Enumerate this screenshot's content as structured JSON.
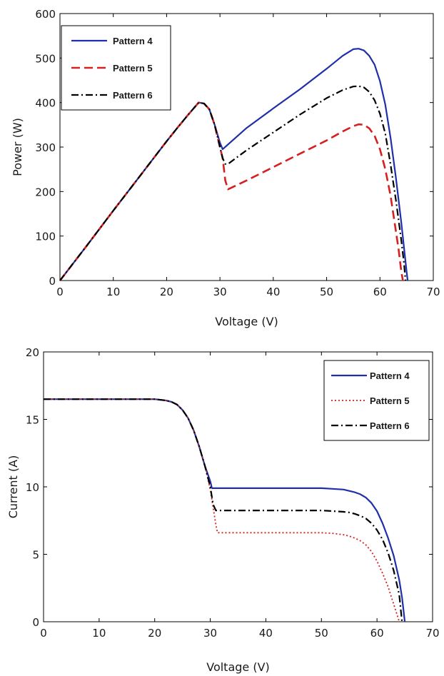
{
  "chart_data": [
    {
      "type": "line",
      "title": "",
      "xlabel": "Voltage (V)",
      "ylabel": "Power (W)",
      "xlim": [
        0,
        70
      ],
      "ylim": [
        0,
        600
      ],
      "xticks": [
        "0",
        "10",
        "20",
        "30",
        "40",
        "50",
        "60",
        "70"
      ],
      "yticks": [
        "0",
        "100",
        "200",
        "300",
        "400",
        "500",
        "600"
      ],
      "grid": false,
      "legend": "top-left",
      "series": [
        {
          "name": "Pattern 4",
          "color": "#1f2fa8",
          "dash": "solid",
          "x": [
            0,
            5,
            10,
            15,
            20,
            22,
            24,
            25,
            26,
            27,
            28,
            29,
            30,
            30.5,
            35,
            40,
            45,
            50,
            53,
            55,
            56,
            57,
            58,
            59,
            60,
            61,
            62,
            63,
            64,
            64.5,
            65,
            65.2
          ],
          "y": [
            0,
            78,
            157,
            235,
            313,
            343,
            372,
            386,
            400,
            398,
            385,
            350,
            310,
            295,
            343,
            387,
            430,
            476,
            505,
            520,
            521,
            517,
            505,
            485,
            448,
            395,
            320,
            230,
            130,
            75,
            20,
            0
          ]
        },
        {
          "name": "Pattern 5",
          "color": "#d42020",
          "dash": "dashed",
          "x": [
            0,
            5,
            10,
            15,
            20,
            22,
            24,
            25,
            26,
            27,
            28,
            29,
            30,
            30.5,
            31,
            31.5,
            35,
            40,
            45,
            50,
            53,
            55,
            56,
            57,
            58,
            59,
            60,
            61,
            62,
            63,
            63.5,
            64,
            64.3
          ],
          "y": [
            0,
            78,
            157,
            235,
            313,
            343,
            372,
            386,
            400,
            398,
            385,
            350,
            300,
            275,
            225,
            205,
            225,
            255,
            285,
            315,
            335,
            347,
            351,
            350,
            342,
            325,
            295,
            250,
            190,
            110,
            70,
            20,
            0
          ]
        },
        {
          "name": "Pattern 6",
          "color": "#000000",
          "dash": "dashdot",
          "x": [
            0,
            5,
            10,
            15,
            20,
            22,
            24,
            25,
            26,
            27,
            28,
            29,
            30,
            30.5,
            31,
            31.5,
            35,
            40,
            45,
            50,
            53,
            55,
            56,
            57,
            58,
            59,
            60,
            61,
            62,
            63,
            64,
            64.5,
            64.8
          ],
          "y": [
            0,
            78,
            157,
            235,
            313,
            343,
            372,
            386,
            400,
            398,
            385,
            350,
            300,
            275,
            262,
            262,
            293,
            333,
            373,
            410,
            428,
            436,
            437,
            434,
            424,
            405,
            375,
            330,
            260,
            180,
            90,
            40,
            0
          ]
        }
      ]
    },
    {
      "type": "line",
      "title": "",
      "xlabel": "Voltage (V)",
      "ylabel": "Current (A)",
      "xlim": [
        0,
        70
      ],
      "ylim": [
        0,
        20
      ],
      "xticks": [
        "0",
        "10",
        "20",
        "30",
        "40",
        "50",
        "60",
        "70"
      ],
      "yticks": [
        "0",
        "5",
        "10",
        "15",
        "20"
      ],
      "grid": false,
      "legend": "top-right",
      "series": [
        {
          "name": "Pattern 4",
          "color": "#1f2fa8",
          "dash": "solid",
          "x": [
            0,
            10,
            18,
            20,
            22,
            23,
            24,
            25,
            26,
            27,
            28,
            29,
            30,
            30.3,
            31,
            40,
            50,
            52,
            54,
            55,
            56,
            57,
            58,
            59,
            60,
            61,
            62,
            63,
            64,
            64.5,
            65
          ],
          "y": [
            16.5,
            16.5,
            16.5,
            16.5,
            16.4,
            16.3,
            16.1,
            15.7,
            15.1,
            14.2,
            13,
            11.6,
            10.4,
            9.9,
            9.9,
            9.9,
            9.9,
            9.85,
            9.8,
            9.7,
            9.6,
            9.45,
            9.2,
            8.8,
            8.2,
            7.3,
            6.2,
            4.9,
            3.1,
            1.8,
            0
          ]
        },
        {
          "name": "Pattern 5",
          "color": "#d42020",
          "dash": "dotted",
          "x": [
            0,
            10,
            18,
            20,
            22,
            23,
            24,
            25,
            26,
            27,
            28,
            29,
            30,
            30.5,
            31,
            31.3,
            40,
            50,
            52,
            54,
            55,
            56,
            57,
            58,
            59,
            60,
            61,
            62,
            63,
            63.7,
            64
          ],
          "y": [
            16.5,
            16.5,
            16.5,
            16.5,
            16.4,
            16.3,
            16.1,
            15.7,
            15.1,
            14.2,
            13,
            11.6,
            9.8,
            8.5,
            7.2,
            6.6,
            6.6,
            6.6,
            6.55,
            6.45,
            6.35,
            6.2,
            6,
            5.7,
            5.2,
            4.5,
            3.6,
            2.6,
            1.3,
            0.4,
            0
          ]
        },
        {
          "name": "Pattern 6",
          "color": "#000000",
          "dash": "dashdot",
          "x": [
            0,
            10,
            18,
            20,
            22,
            23,
            24,
            25,
            26,
            27,
            28,
            29,
            30,
            30.5,
            31,
            40,
            50,
            52,
            54,
            55,
            56,
            57,
            58,
            59,
            60,
            61,
            62,
            63,
            64,
            64.5
          ],
          "y": [
            16.5,
            16.5,
            16.5,
            16.5,
            16.4,
            16.3,
            16.1,
            15.7,
            15.1,
            14.2,
            13,
            11.6,
            10,
            8.7,
            8.25,
            8.25,
            8.25,
            8.2,
            8.15,
            8.1,
            8,
            7.85,
            7.65,
            7.3,
            6.8,
            6.1,
            5.1,
            3.8,
            2,
            0
          ]
        }
      ]
    }
  ]
}
